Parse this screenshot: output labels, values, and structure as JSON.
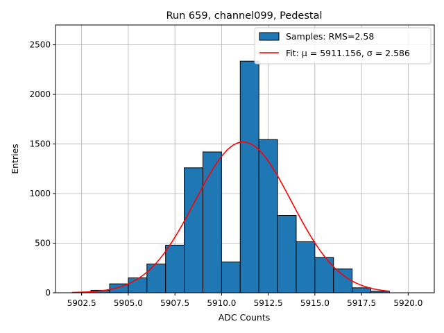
{
  "chart_data": {
    "type": "bar",
    "title": "Run 659, channel099, Pedestal",
    "xlabel": "ADC Counts",
    "ylabel": "Entries",
    "xlim": [
      5901.1,
      5921.4
    ],
    "ylim": [
      0,
      2700
    ],
    "xticks": [
      5902.5,
      5905.0,
      5907.5,
      5910.0,
      5912.5,
      5915.0,
      5917.5,
      5920.0
    ],
    "xtick_labels": [
      "5902.5",
      "5905.0",
      "5907.5",
      "5910.0",
      "5912.5",
      "5915.0",
      "5917.5",
      "5920.0"
    ],
    "yticks": [
      0,
      500,
      1000,
      1500,
      2000,
      2500
    ],
    "ytick_labels": [
      "0",
      "500",
      "1000",
      "1500",
      "2000",
      "2500"
    ],
    "grid": true,
    "legend_position": "top-right",
    "bins": {
      "edges": [
        5902.0,
        5903.0,
        5904.0,
        5905.0,
        5906.0,
        5907.0,
        5908.0,
        5909.0,
        5910.0,
        5911.0,
        5912.0,
        5913.0,
        5914.0,
        5915.0,
        5916.0,
        5917.0,
        5918.0,
        5919.0
      ],
      "counts": [
        3,
        25,
        90,
        150,
        290,
        480,
        1260,
        1420,
        310,
        2335,
        1545,
        780,
        515,
        355,
        240,
        50,
        15
      ]
    },
    "series": [
      {
        "name": "Samples: RMS=2.58",
        "kind": "histogram",
        "color": "#1f77b4",
        "edgecolor": "#000000"
      },
      {
        "name": "Fit: μ = 5911.156, σ = 2.586",
        "kind": "gaussian-fit",
        "color": "#ff0000",
        "mu": 5911.156,
        "sigma": 2.586,
        "amplitude": 1520,
        "x_range": [
          5902.0,
          5919.0
        ]
      }
    ]
  }
}
